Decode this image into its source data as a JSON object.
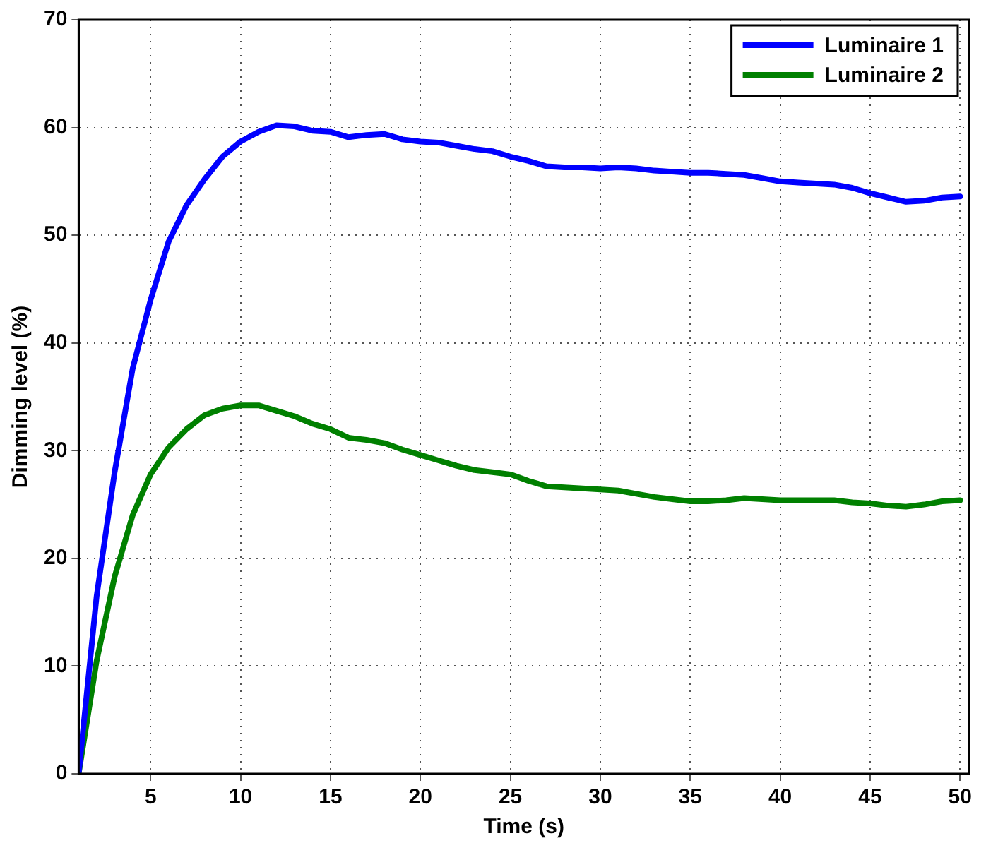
{
  "chart_data": {
    "type": "line",
    "xlabel": "Time (s)",
    "ylabel": "Dimming level (%)",
    "x": [
      1,
      2,
      3,
      4,
      5,
      6,
      7,
      8,
      9,
      10,
      11,
      12,
      13,
      14,
      15,
      16,
      17,
      18,
      19,
      20,
      21,
      22,
      23,
      24,
      25,
      26,
      27,
      28,
      29,
      30,
      31,
      32,
      33,
      34,
      35,
      36,
      37,
      38,
      39,
      40,
      41,
      42,
      43,
      44,
      45,
      46,
      47,
      48,
      49,
      50
    ],
    "series": [
      {
        "name": "Luminaire 1",
        "color": "#0000ff",
        "values": [
          0,
          16.5,
          28,
          37.6,
          44,
          49.4,
          52.8,
          55.2,
          57.3,
          58.7,
          59.6,
          60.2,
          60.1,
          59.7,
          59.6,
          59.1,
          59.3,
          59.4,
          58.9,
          58.7,
          58.6,
          58.3,
          58.0,
          57.8,
          57.3,
          56.9,
          56.4,
          56.3,
          56.3,
          56.2,
          56.3,
          56.2,
          56.0,
          55.9,
          55.8,
          55.8,
          55.7,
          55.6,
          55.3,
          55.0,
          54.9,
          54.8,
          54.7,
          54.4,
          53.9,
          53.5,
          53.1,
          53.2,
          53.5,
          53.6
        ]
      },
      {
        "name": "Luminaire 2",
        "color": "#008000",
        "values": [
          0,
          10.5,
          18.3,
          24,
          27.8,
          30.3,
          32,
          33.3,
          33.9,
          34.2,
          34.2,
          33.7,
          33.2,
          32.5,
          32.0,
          31.2,
          31.0,
          30.7,
          30.1,
          29.6,
          29.1,
          28.6,
          28.2,
          28.0,
          27.8,
          27.2,
          26.7,
          26.6,
          26.5,
          26.4,
          26.3,
          26.0,
          25.7,
          25.5,
          25.3,
          25.3,
          25.4,
          25.6,
          25.5,
          25.4,
          25.4,
          25.4,
          25.4,
          25.2,
          25.1,
          24.9,
          24.8,
          25.0,
          25.3,
          25.4
        ]
      }
    ],
    "xlim": [
      1,
      50.5
    ],
    "xticks": [
      5,
      10,
      15,
      20,
      25,
      30,
      35,
      40,
      45,
      50
    ],
    "ylim": [
      0,
      70
    ],
    "yticks": [
      0,
      10,
      20,
      30,
      40,
      50,
      60,
      70
    ],
    "grid": true,
    "legend": "top right",
    "marker": "none",
    "line_style": "solid"
  }
}
